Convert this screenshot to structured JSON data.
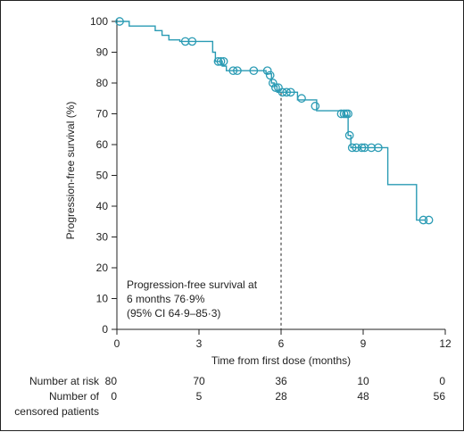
{
  "chart_data": {
    "type": "line",
    "xlabel": "Time from first dose (months)",
    "ylabel": "Progression-free survival (%)",
    "xlim": [
      0,
      12
    ],
    "ylim": [
      0,
      100
    ],
    "xticks": [
      "0",
      "3",
      "6",
      "9",
      "12"
    ],
    "yticks": [
      "0",
      "10",
      "20",
      "30",
      "40",
      "50",
      "60",
      "70",
      "80",
      "90",
      "100"
    ],
    "grid": false,
    "color": "#2a9bb4",
    "series": [
      {
        "steps": [
          [
            0,
            100
          ],
          [
            0.45,
            98.5
          ],
          [
            1.4,
            97
          ],
          [
            1.65,
            95.5
          ],
          [
            1.9,
            94
          ],
          [
            2.3,
            93.5
          ],
          [
            3.5,
            90
          ],
          [
            3.6,
            87
          ],
          [
            3.85,
            85.5
          ],
          [
            4.0,
            84
          ],
          [
            5.45,
            83
          ],
          [
            5.65,
            80
          ],
          [
            5.75,
            79
          ],
          [
            5.85,
            77
          ],
          [
            6.6,
            74.5
          ],
          [
            7.3,
            71
          ],
          [
            8.3,
            69.5
          ],
          [
            8.45,
            63
          ],
          [
            8.55,
            59
          ],
          [
            9.9,
            47
          ],
          [
            10.95,
            35.5
          ],
          [
            11.3,
            35.5
          ]
        ],
        "censored": [
          [
            0.1,
            100
          ],
          [
            2.5,
            93.5
          ],
          [
            2.75,
            93.5
          ],
          [
            3.7,
            87
          ],
          [
            3.8,
            87
          ],
          [
            3.9,
            87
          ],
          [
            4.25,
            84
          ],
          [
            4.4,
            84
          ],
          [
            5.0,
            84
          ],
          [
            5.5,
            84
          ],
          [
            5.6,
            82.5
          ],
          [
            5.7,
            80
          ],
          [
            5.8,
            78.5
          ],
          [
            5.9,
            78.5
          ],
          [
            6.05,
            77
          ],
          [
            6.2,
            77
          ],
          [
            6.35,
            77
          ],
          [
            6.75,
            75
          ],
          [
            7.25,
            72.5
          ],
          [
            8.2,
            70
          ],
          [
            8.3,
            70
          ],
          [
            8.38,
            70
          ],
          [
            8.45,
            70
          ],
          [
            8.5,
            63
          ],
          [
            8.6,
            59
          ],
          [
            8.75,
            59
          ],
          [
            8.95,
            59
          ],
          [
            9.05,
            59
          ],
          [
            9.3,
            59
          ],
          [
            9.55,
            59
          ],
          [
            11.2,
            35.5
          ],
          [
            11.4,
            35.5
          ]
        ]
      }
    ],
    "reference_line": {
      "x": 6,
      "y": 76.9
    },
    "annotation": [
      "Progression-free survival at",
      "6 months 76·9%",
      "(95% CI 64·9–85·3)"
    ]
  },
  "risk_table": {
    "rows": [
      {
        "label": "Number at risk",
        "values": [
          "80",
          "70",
          "36",
          "10",
          "0"
        ]
      },
      {
        "label": "Number of",
        "label2": "censored patients",
        "values": [
          "0",
          "5",
          "28",
          "48",
          "56"
        ]
      }
    ]
  }
}
